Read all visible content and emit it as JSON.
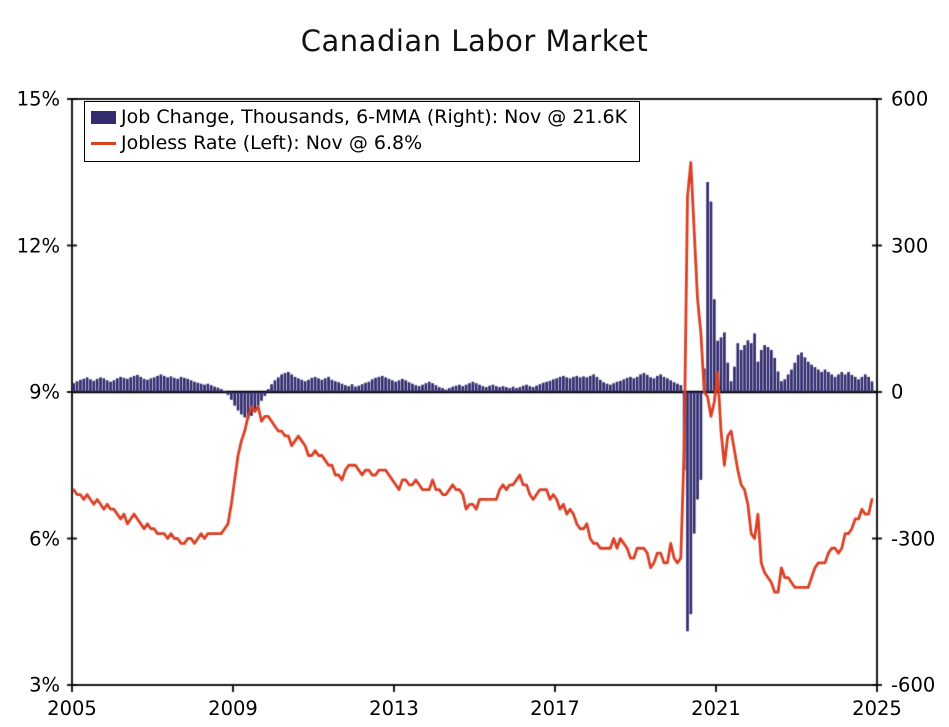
{
  "chart_data": {
    "type": "bar+line",
    "title": "Canadian Labor Market",
    "x_range": [
      2005,
      2025
    ],
    "x_start": 2005,
    "frequency": "monthly",
    "x_ticks": [
      {
        "value": 2005,
        "label": "2005"
      },
      {
        "value": 2009,
        "label": "2009"
      },
      {
        "value": 2013,
        "label": "2013"
      },
      {
        "value": 2017,
        "label": "2017"
      },
      {
        "value": 2021,
        "label": "2021"
      },
      {
        "value": 2025,
        "label": "2025"
      }
    ],
    "left_axis": {
      "min": 3,
      "max": 15,
      "unit": "%",
      "ticks": [
        {
          "value": 3,
          "label": "3%"
        },
        {
          "value": 6,
          "label": "6%"
        },
        {
          "value": 9,
          "label": "9%"
        },
        {
          "value": 12,
          "label": "12%"
        },
        {
          "value": 15,
          "label": "15%"
        }
      ]
    },
    "right_axis": {
      "min": -600,
      "max": 600,
      "unit": "thousands",
      "ticks": [
        {
          "value": 600,
          "label": "600"
        },
        {
          "value": 300,
          "label": "300"
        },
        {
          "value": 0,
          "label": "0"
        },
        {
          "value": -300,
          "label": "-300"
        },
        {
          "value": -600,
          "label": "-600"
        }
      ]
    },
    "series": [
      {
        "name": "Job Change, Thousands, 6-MMA",
        "legend_label": "Job Change, Thousands, 6-MMA (Right): Nov @ 21.6K",
        "type": "bar",
        "axis": "right",
        "color": "#332d70",
        "latest": {
          "period": "Nov",
          "value": 21.6
        },
        "values": [
          18,
          22,
          25,
          27,
          30,
          26,
          23,
          27,
          30,
          28,
          24,
          21,
          24,
          28,
          31,
          29,
          27,
          30,
          33,
          35,
          31,
          27,
          25,
          28,
          30,
          33,
          36,
          33,
          30,
          32,
          29,
          27,
          31,
          29,
          27,
          24,
          21,
          19,
          17,
          15,
          17,
          14,
          11,
          9,
          6,
          2,
          -6,
          -16,
          -28,
          -38,
          -46,
          -52,
          -55,
          -49,
          -39,
          -28,
          -18,
          -8,
          6,
          16,
          24,
          30,
          36,
          39,
          41,
          36,
          31,
          28,
          25,
          22,
          25,
          29,
          31,
          28,
          25,
          28,
          31,
          25,
          22,
          20,
          17,
          14,
          12,
          16,
          11,
          13,
          16,
          19,
          21,
          26,
          29,
          31,
          33,
          30,
          27,
          24,
          21,
          24,
          27,
          24,
          20,
          17,
          14,
          12,
          15,
          18,
          21,
          18,
          14,
          10,
          8,
          5,
          8,
          11,
          13,
          15,
          12,
          15,
          18,
          21,
          18,
          15,
          12,
          10,
          13,
          15,
          12,
          10,
          12,
          10,
          8,
          11,
          8,
          10,
          13,
          15,
          12,
          10,
          13,
          16,
          19,
          21,
          23,
          26,
          28,
          31,
          33,
          30,
          28,
          31,
          33,
          30,
          32,
          30,
          33,
          36,
          31,
          25,
          20,
          17,
          15,
          18,
          21,
          23,
          26,
          29,
          31,
          28,
          31,
          36,
          39,
          35,
          30,
          28,
          33,
          36,
          31,
          28,
          24,
          20,
          17,
          14,
          -160,
          -490,
          -455,
          -290,
          -220,
          -180,
          48,
          430,
          390,
          190,
          105,
          112,
          122,
          60,
          22,
          52,
          100,
          86,
          96,
          106,
          100,
          120,
          62,
          86,
          96,
          92,
          86,
          70,
          42,
          22,
          26,
          36,
          46,
          60,
          76,
          81,
          71,
          62,
          56,
          51,
          46,
          41,
          46,
          41,
          36,
          31,
          36,
          41,
          36,
          41,
          35,
          31,
          26,
          31,
          36,
          31,
          21.6
        ]
      },
      {
        "name": "Jobless Rate",
        "legend_label": "Jobless Rate (Left): Nov @ 6.8%",
        "type": "line",
        "axis": "left",
        "color": "#d94026",
        "latest": {
          "period": "Nov",
          "value": 6.8
        },
        "values": [
          7.0,
          6.9,
          6.9,
          6.8,
          6.9,
          6.8,
          6.7,
          6.8,
          6.7,
          6.6,
          6.7,
          6.6,
          6.6,
          6.5,
          6.4,
          6.5,
          6.3,
          6.4,
          6.5,
          6.4,
          6.3,
          6.2,
          6.3,
          6.2,
          6.2,
          6.1,
          6.1,
          6.1,
          6.0,
          6.1,
          6.0,
          6.0,
          5.9,
          5.9,
          6.0,
          6.0,
          5.9,
          6.0,
          6.1,
          6.0,
          6.1,
          6.1,
          6.1,
          6.1,
          6.1,
          6.2,
          6.3,
          6.7,
          7.2,
          7.7,
          8.0,
          8.2,
          8.5,
          8.7,
          8.6,
          8.7,
          8.4,
          8.5,
          8.5,
          8.4,
          8.3,
          8.2,
          8.2,
          8.1,
          8.1,
          7.9,
          8.0,
          8.1,
          8.0,
          7.9,
          7.7,
          7.7,
          7.8,
          7.7,
          7.7,
          7.6,
          7.5,
          7.5,
          7.3,
          7.3,
          7.2,
          7.4,
          7.5,
          7.5,
          7.5,
          7.4,
          7.3,
          7.4,
          7.4,
          7.3,
          7.3,
          7.4,
          7.4,
          7.4,
          7.3,
          7.2,
          7.1,
          7.0,
          7.2,
          7.2,
          7.1,
          7.1,
          7.2,
          7.1,
          7.0,
          7.0,
          7.0,
          7.2,
          7.0,
          7.0,
          6.9,
          6.9,
          7.0,
          7.1,
          7.0,
          7.0,
          6.9,
          6.6,
          6.7,
          6.7,
          6.6,
          6.8,
          6.8,
          6.8,
          6.8,
          6.8,
          6.8,
          7.0,
          7.1,
          7.0,
          7.1,
          7.1,
          7.2,
          7.3,
          7.1,
          7.1,
          6.9,
          6.8,
          6.9,
          7.0,
          7.0,
          7.0,
          6.8,
          6.9,
          6.8,
          6.6,
          6.7,
          6.5,
          6.6,
          6.5,
          6.3,
          6.2,
          6.2,
          6.3,
          6.0,
          5.9,
          5.9,
          5.8,
          5.8,
          5.8,
          5.8,
          6.0,
          5.8,
          6.0,
          5.9,
          5.8,
          5.6,
          5.6,
          5.8,
          5.8,
          5.8,
          5.7,
          5.4,
          5.5,
          5.7,
          5.7,
          5.5,
          5.5,
          5.9,
          5.6,
          5.5,
          5.6,
          7.8,
          13.0,
          13.7,
          12.3,
          10.9,
          10.2,
          9.0,
          8.9,
          8.5,
          8.8,
          9.4,
          8.2,
          7.5,
          8.1,
          8.2,
          7.8,
          7.4,
          7.1,
          7.0,
          6.7,
          6.1,
          6.0,
          6.5,
          5.5,
          5.3,
          5.2,
          5.1,
          4.9,
          4.9,
          5.4,
          5.2,
          5.2,
          5.1,
          5.0,
          5.0,
          5.0,
          5.0,
          5.0,
          5.2,
          5.4,
          5.5,
          5.5,
          5.5,
          5.7,
          5.8,
          5.8,
          5.7,
          5.8,
          6.1,
          6.1,
          6.2,
          6.4,
          6.4,
          6.6,
          6.5,
          6.5,
          6.8
        ]
      }
    ],
    "axis_color": "#000000",
    "background_color": "#ffffff",
    "grid": false,
    "legend_position": "top-left-inside"
  }
}
